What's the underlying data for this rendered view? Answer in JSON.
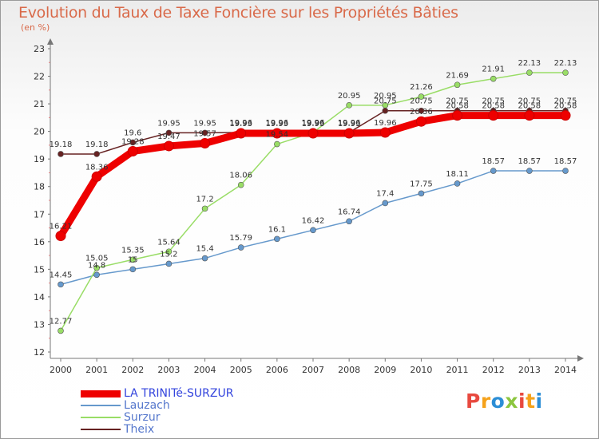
{
  "title": "Evolution du Taux de Taxe Foncière sur les Propriétés Bâties",
  "subtitle": "(en %)",
  "logo": {
    "text": "Proxiti",
    "letters": [
      {
        "char": "P",
        "color": "#e8493f"
      },
      {
        "char": "r",
        "color": "#f5a21b"
      },
      {
        "char": "o",
        "color": "#2c8ed6"
      },
      {
        "char": "x",
        "color": "#8cc63f"
      },
      {
        "char": "i",
        "color": "#e8493f"
      },
      {
        "char": "t",
        "color": "#f5a21b"
      },
      {
        "char": "i",
        "color": "#2c8ed6"
      }
    ]
  },
  "chart_data": {
    "type": "line",
    "title": "Evolution du Taux de Taxe Foncière sur les Propriétés Bâties",
    "ylabel": "(en %)",
    "xlabel": "",
    "x": [
      "2000",
      "2001",
      "2002",
      "2003",
      "2004",
      "2005",
      "2006",
      "2007",
      "2008",
      "2009",
      "2010",
      "2011",
      "2012",
      "2013",
      "2014"
    ],
    "ylim": [
      12,
      23
    ],
    "yticks": [
      12,
      13,
      14,
      15,
      16,
      17,
      18,
      19,
      20,
      21,
      22,
      23
    ],
    "grid": false,
    "legend_position": "bottom-left",
    "series": [
      {
        "name": "LA TRINITé-SURZUR",
        "color": "#ee0000",
        "width": 9,
        "marker": 6,
        "values": [
          16.21,
          18.36,
          19.28,
          19.47,
          19.57,
          19.93,
          19.93,
          19.93,
          19.93,
          19.96,
          20.36,
          20.58,
          20.58,
          20.58,
          20.58
        ],
        "labels": [
          "16.21",
          "18.36",
          "19.28",
          "19.47",
          "19.57",
          "19.93",
          "19.93",
          "19.93",
          "19.93",
          "19.96",
          "20.36",
          "20.58",
          "20.58",
          "20.58",
          "20.58"
        ]
      },
      {
        "name": "Lauzach",
        "color": "#6699cc",
        "width": 1.5,
        "marker": 3.5,
        "values": [
          14.45,
          14.8,
          15,
          15.2,
          15.4,
          15.79,
          16.1,
          16.42,
          16.74,
          17.4,
          17.75,
          18.11,
          18.57,
          18.57,
          18.57
        ],
        "labels": [
          "14.45",
          "14.8",
          "15",
          "15.2",
          "15.4",
          "15.79",
          "16.1",
          "16.42",
          "16.74",
          "17.4",
          "17.75",
          "18.11",
          "18.57",
          "18.57",
          "18.57"
        ]
      },
      {
        "name": "Surzur",
        "color": "#99dd66",
        "width": 1.5,
        "marker": 3.5,
        "values": [
          12.77,
          15.05,
          15.35,
          15.64,
          17.2,
          18.06,
          19.54,
          19.96,
          20.95,
          20.95,
          21.26,
          21.69,
          21.91,
          22.13,
          22.13
        ],
        "labels": [
          "12.77",
          "15.05",
          "15.35",
          "15.64",
          "17.2",
          "18.06",
          "19.54",
          "19.96",
          "20.95",
          "20.95",
          "21.26",
          "21.69",
          "21.91",
          "22.13",
          "22.13"
        ]
      },
      {
        "name": "Theix",
        "color": "#662222",
        "width": 1.5,
        "marker": 3.5,
        "values": [
          19.18,
          19.18,
          19.6,
          19.95,
          19.95,
          19.96,
          19.96,
          19.96,
          19.96,
          20.75,
          20.75,
          20.75,
          20.75,
          20.75,
          20.75
        ],
        "labels": [
          "19.18",
          "19.18",
          "19.6",
          "19.95",
          "19.95",
          "19.96",
          "19.96",
          "19.96",
          "19.96",
          "20.75",
          "20.75",
          "20.75",
          "20.75",
          "20.75",
          "20.75"
        ]
      }
    ]
  }
}
